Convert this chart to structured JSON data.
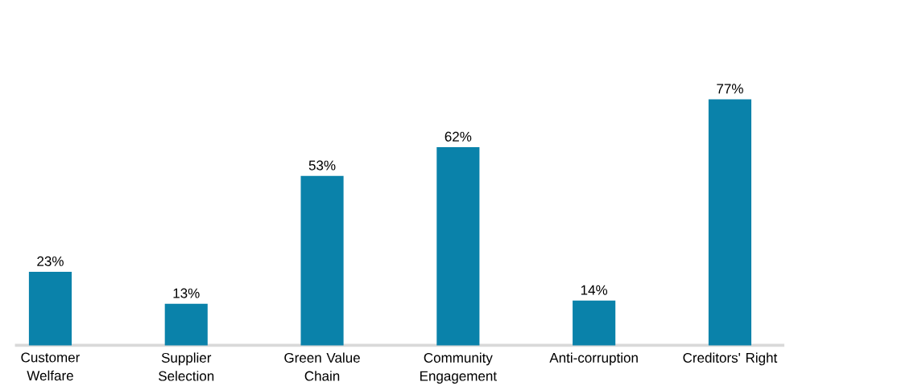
{
  "chart_data": {
    "type": "bar",
    "categories": [
      "Customer Welfare",
      "Supplier Selection",
      "Green Value Chain",
      "Community Engagement",
      "Anti-corruption",
      "Creditors' Right"
    ],
    "values": [
      23,
      13,
      53,
      62,
      14,
      77
    ],
    "value_labels": [
      "23%",
      "13%",
      "53%",
      "62%",
      "14%",
      "77%"
    ],
    "color": "#0a82aa"
  }
}
